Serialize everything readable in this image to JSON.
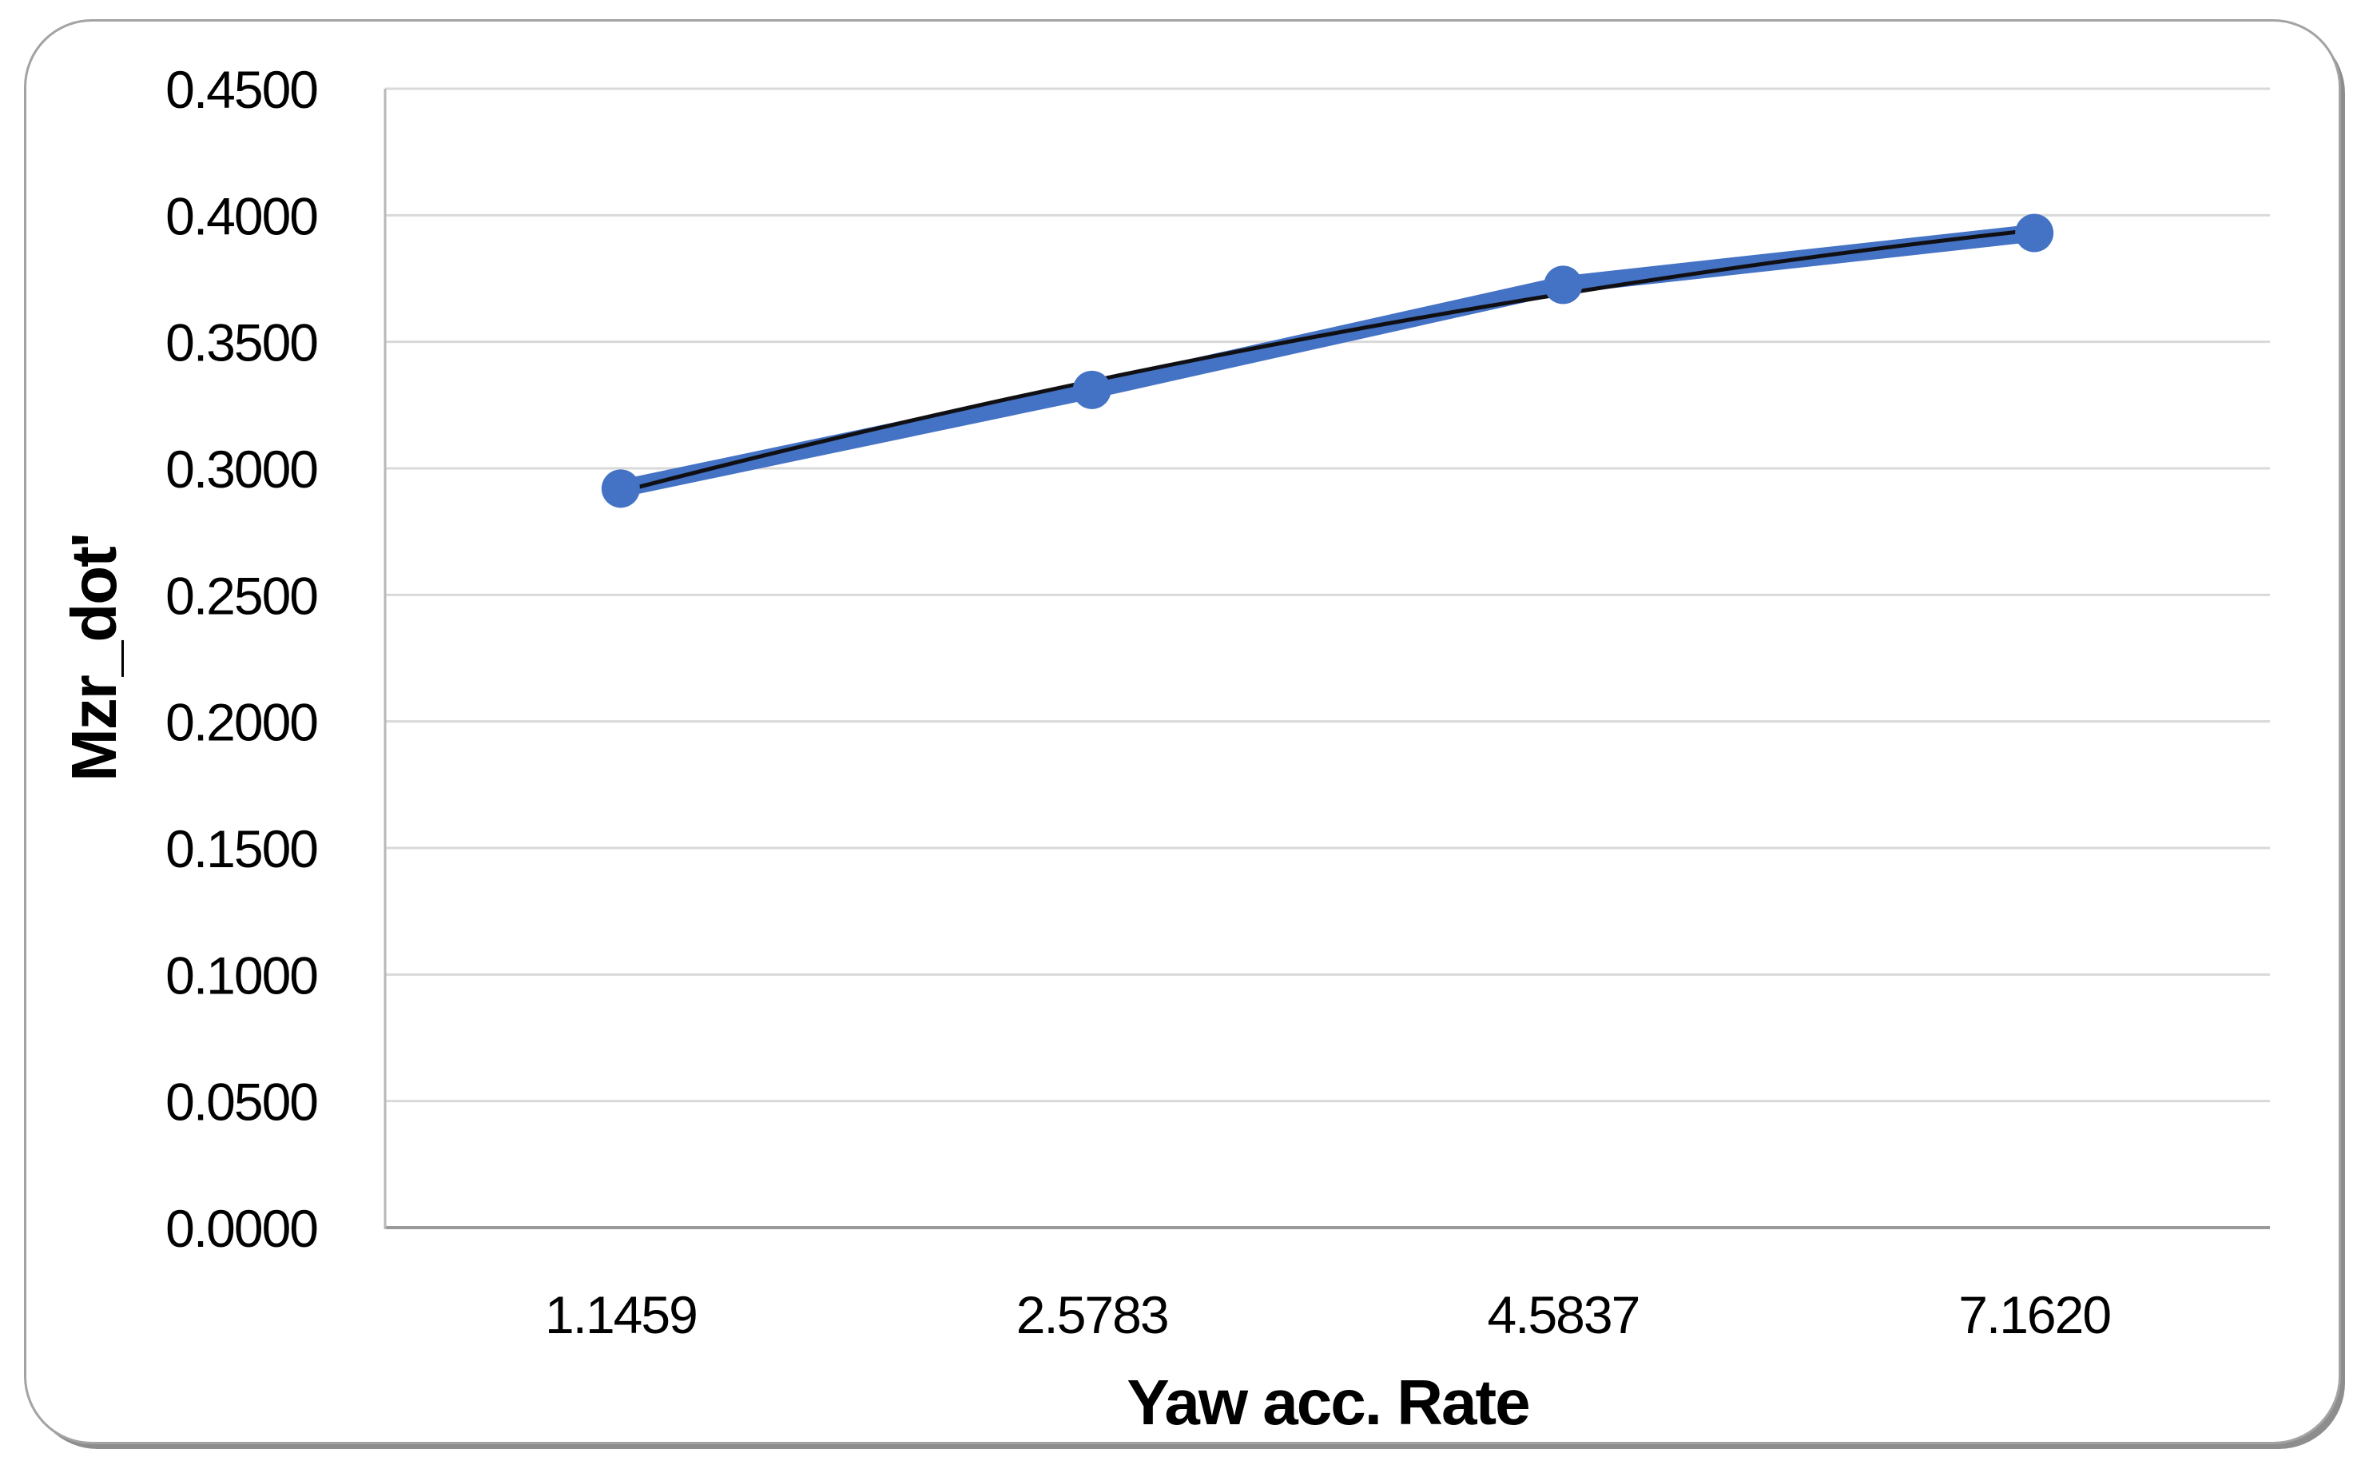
{
  "chart_data": {
    "type": "line",
    "title": "",
    "xlabel": "Yaw acc. Rate",
    "ylabel": "Mzr_dot'",
    "categories": [
      "1.1459",
      "2.5783",
      "4.5837",
      "7.1620"
    ],
    "series": [
      {
        "name": "Mzr_dot'",
        "values": [
          0.292,
          0.331,
          0.3725,
          0.393
        ],
        "color": "#4472c4",
        "marker": "circle",
        "line_width": "thick"
      }
    ],
    "trendline": {
      "type": "polynomial",
      "order": 2,
      "color": "#101014",
      "applies_to": "Mzr_dot'"
    },
    "ylim": [
      0.0,
      0.45
    ],
    "y_tick_step": 0.05,
    "y_tick_labels": [
      "0.0000",
      "0.0500",
      "0.1000",
      "0.1500",
      "0.2000",
      "0.2500",
      "0.3000",
      "0.3500",
      "0.4000",
      "0.4500"
    ],
    "grid": "horizontal",
    "legend": "none"
  },
  "colors": {
    "series_blue": "#4472c4",
    "trendline": "#101014",
    "gridline": "#d9d9d9",
    "axis_line": "#9a9a9a",
    "left_axis_line": "#b8b8b8",
    "chart_border": "#a3a3a3",
    "chart_shadow": "#8d8d8d",
    "text": "#000000",
    "background": "#ffffff"
  }
}
